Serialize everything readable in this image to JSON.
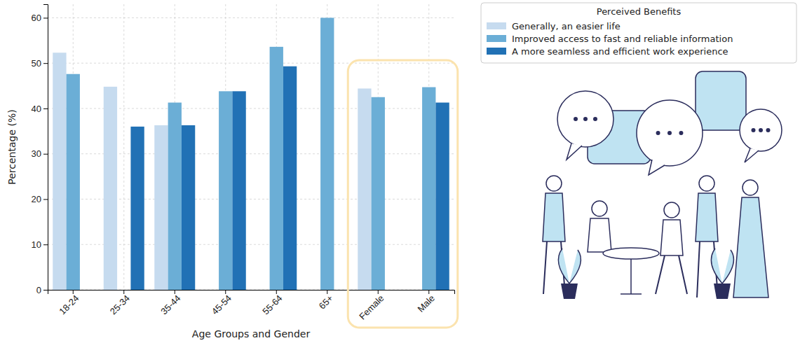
{
  "chart_data": {
    "type": "bar",
    "x_label": "Age Groups and Gender",
    "y_label": "Percentage (%)",
    "legend_title": "Perceived Benefits",
    "categories": [
      "18-24",
      "25-34",
      "35-44",
      "45-54",
      "55-64",
      "65+",
      "Female",
      "Male"
    ],
    "series": [
      {
        "name": "Generally, an easier life",
        "color": "#c6dbef",
        "values": [
          52.3,
          44.8,
          36.3,
          null,
          null,
          null,
          44.4,
          null
        ]
      },
      {
        "name": "Improved access to fast and reliable information",
        "color": "#6baed6",
        "values": [
          47.6,
          null,
          41.3,
          43.8,
          53.6,
          60.0,
          42.5,
          44.7
        ]
      },
      {
        "name": "A more seamless and efficient work experience",
        "color": "#2171b5",
        "values": [
          null,
          36.0,
          36.3,
          43.8,
          49.3,
          null,
          null,
          41.3
        ]
      }
    ],
    "ylim": [
      0,
      63
    ],
    "yticks": [
      0,
      10,
      20,
      30,
      40,
      50,
      60
    ],
    "grid": true,
    "legend": "upper right"
  }
}
